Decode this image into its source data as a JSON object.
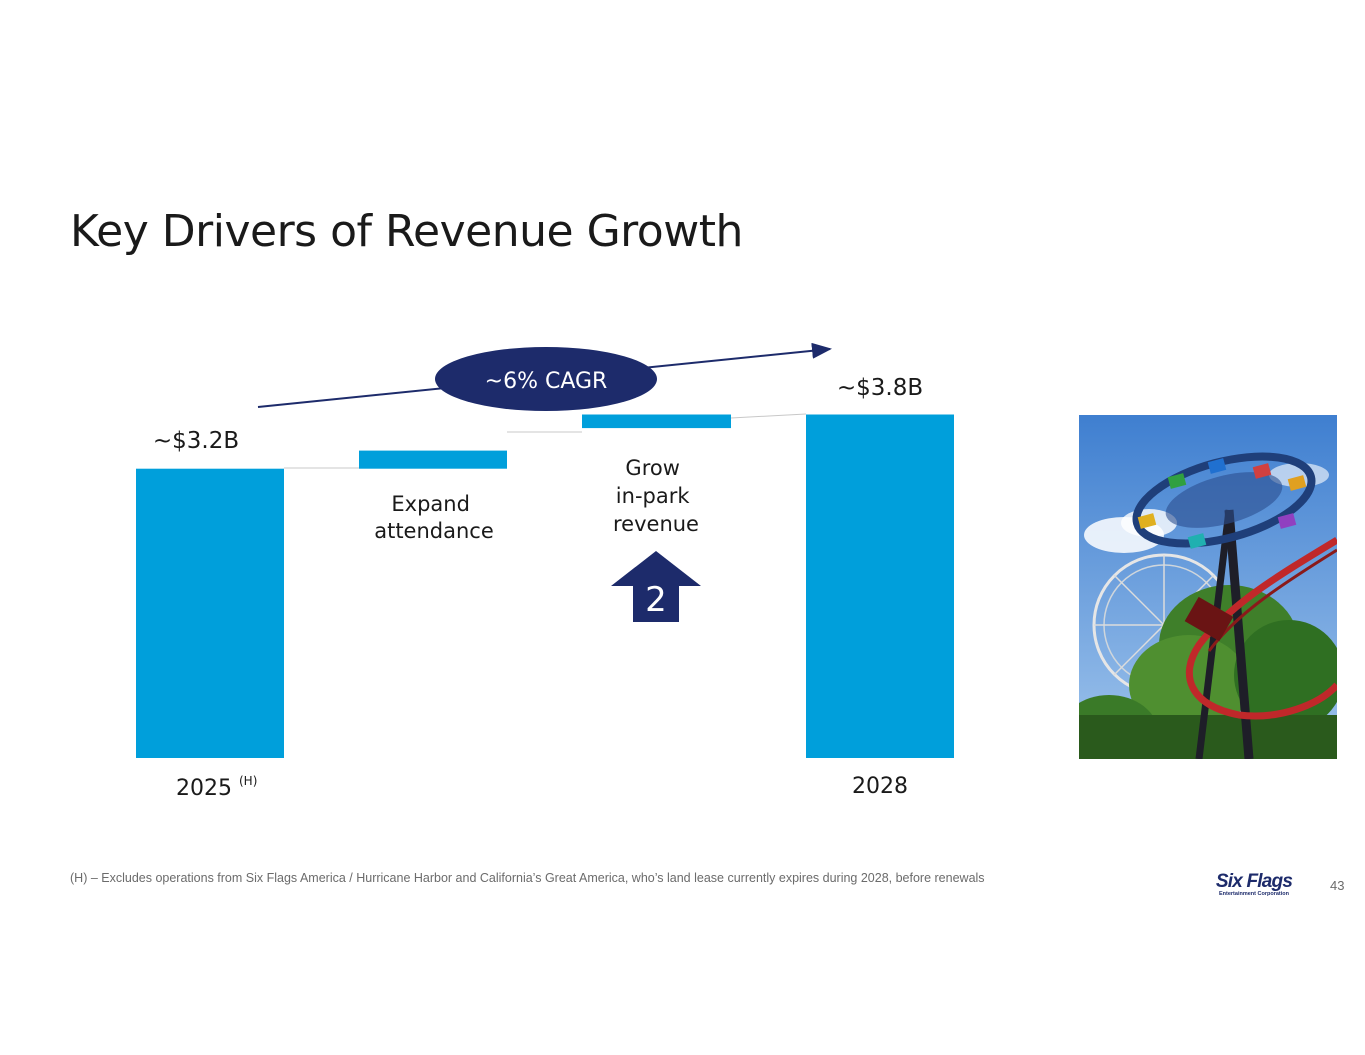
{
  "title": "Key Drivers of Revenue Growth",
  "chart_data": {
    "type": "bar",
    "subtype": "waterfall",
    "categories": [
      "2025 (H)",
      "Expand attendance",
      "Grow in-park revenue",
      "2028"
    ],
    "bars": [
      {
        "id": "start",
        "kind": "total",
        "start": 0,
        "end": 3.2
      },
      {
        "id": "attendance",
        "kind": "step",
        "start": 3.2,
        "end": 3.4
      },
      {
        "id": "inpark",
        "kind": "step",
        "start": 3.65,
        "end": 3.8
      },
      {
        "id": "end",
        "kind": "total",
        "start": 0,
        "end": 3.8
      }
    ],
    "value_labels": {
      "start": "~$3.2B",
      "end": "~$3.8B"
    },
    "axis_labels": {
      "start_year": "2025",
      "start_year_note": "(H)",
      "end_year": "2028"
    },
    "step_labels": {
      "attendance": [
        "Expand",
        "attendance"
      ],
      "inpark": [
        "Grow",
        "in-park",
        "revenue"
      ]
    },
    "cagr_label": "~6% CAGR",
    "step_marker": "2",
    "ylim": [
      0,
      3.8
    ],
    "units": "$B",
    "colors": {
      "bar": "#009fdb",
      "accent": "#1d2b6b",
      "connector": "#c8c8c8"
    }
  },
  "footnote": "(H) – Excludes operations from Six Flags America / Hurricane Harbor and California’s Great America, who’s land lease currently expires during 2028, before renewals",
  "logo": {
    "main": "Six Flags",
    "sub": "Entertainment Corporation"
  },
  "page_number": "43"
}
